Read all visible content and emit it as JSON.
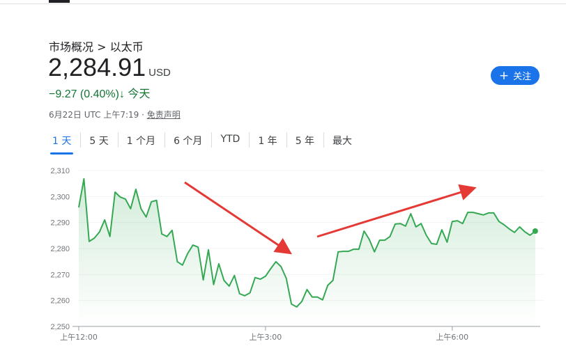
{
  "header": {
    "breadcrumb": "市场概况 > 以太币",
    "price": "2,284.91",
    "currency": "USD",
    "change": "−9.27 (0.40%)",
    "change_arrow": "↓",
    "change_period": "今天",
    "date": "6月22日 UTC 上午7:19 · ",
    "disclaimer": "免责声明",
    "follow_label": "关注",
    "follow_icon": "plus-icon"
  },
  "tabs": [
    {
      "label": "1 天",
      "active": true
    },
    {
      "label": "5 天"
    },
    {
      "label": "1 个月"
    },
    {
      "label": "6 个月"
    },
    {
      "label": "YTD"
    },
    {
      "label": "1 年"
    },
    {
      "label": "5 年"
    },
    {
      "label": "最大"
    }
  ],
  "colors": {
    "line": "#34a853",
    "accent": "#1a73e8",
    "negative": "#137333",
    "annotation": "#e53935"
  },
  "chart_data": {
    "type": "area",
    "ylim": [
      2250,
      2310
    ],
    "yticks": [
      "2,250",
      "2,260",
      "2,270",
      "2,280",
      "2,290",
      "2,300",
      "2,310"
    ],
    "xticks": [
      {
        "label": "上午12:00",
        "t": "00:00"
      },
      {
        "label": "上午3:00",
        "t": "03:00"
      },
      {
        "label": "上午6:00",
        "t": "06:00"
      }
    ],
    "grid": true,
    "x": [
      "00:00",
      "00:05",
      "00:10",
      "00:15",
      "00:20",
      "00:25",
      "00:30",
      "00:35",
      "00:40",
      "00:45",
      "00:50",
      "00:55",
      "01:00",
      "01:05",
      "01:10",
      "01:15",
      "01:20",
      "01:25",
      "01:30",
      "01:35",
      "01:40",
      "01:45",
      "01:50",
      "01:55",
      "02:00",
      "02:05",
      "02:10",
      "02:15",
      "02:20",
      "02:25",
      "02:30",
      "02:35",
      "02:40",
      "02:45",
      "02:50",
      "02:55",
      "03:00",
      "03:05",
      "03:10",
      "03:15",
      "03:20",
      "03:25",
      "03:30",
      "03:35",
      "03:40",
      "03:45",
      "03:50",
      "03:55",
      "04:00",
      "04:05",
      "04:10",
      "04:15",
      "04:20",
      "04:25",
      "04:30",
      "04:35",
      "04:40",
      "04:45",
      "04:50",
      "04:55",
      "05:00",
      "05:05",
      "05:10",
      "05:15",
      "05:20",
      "05:25",
      "05:30",
      "05:35",
      "05:40",
      "05:45",
      "05:50",
      "05:55",
      "06:00",
      "06:05",
      "06:10",
      "06:15",
      "06:20",
      "06:25",
      "06:30",
      "06:35",
      "06:40",
      "06:45",
      "06:50",
      "06:55",
      "07:00",
      "07:05",
      "07:10",
      "07:15",
      "07:20"
    ],
    "values": [
      2295.8,
      2306.8,
      2282.7,
      2284.0,
      2286.4,
      2291.0,
      2284.6,
      2301.7,
      2299.8,
      2299.0,
      2295.3,
      2302.8,
      2295.3,
      2292.1,
      2298.0,
      2298.5,
      2285.6,
      2284.6,
      2287.0,
      2274.9,
      2273.6,
      2278.1,
      2281.3,
      2280.5,
      2267.9,
      2279.5,
      2266.1,
      2274.1,
      2267.7,
      2265.5,
      2269.6,
      2262.6,
      2261.8,
      2262.9,
      2268.8,
      2268.2,
      2269.3,
      2272.2,
      2274.9,
      2273.0,
      2268.5,
      2258.6,
      2257.5,
      2259.6,
      2264.2,
      2261.3,
      2261.3,
      2260.2,
      2265.8,
      2267.7,
      2278.7,
      2278.9,
      2278.9,
      2279.7,
      2279.7,
      2286.7,
      2283.5,
      2278.7,
      2283.2,
      2283.2,
      2284.6,
      2289.4,
      2289.6,
      2288.6,
      2293.4,
      2288.3,
      2289.6,
      2285.1,
      2281.9,
      2281.6,
      2287.2,
      2282.4,
      2290.4,
      2290.7,
      2289.6,
      2293.9,
      2293.9,
      2293.4,
      2292.9,
      2293.7,
      2293.7,
      2290.4,
      2289.1,
      2287.5,
      2286.2,
      2288.3,
      2286.4,
      2285.1,
      2286.7
    ]
  }
}
